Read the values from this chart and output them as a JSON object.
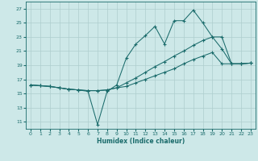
{
  "background_color": "#cde8e8",
  "grid_color": "#aecece",
  "line_color": "#1a6b6b",
  "xlabel": "Humidex (Indice chaleur)",
  "xlim": [
    -0.5,
    23.5
  ],
  "ylim": [
    10,
    28
  ],
  "yticks": [
    11,
    13,
    15,
    17,
    19,
    21,
    23,
    25,
    27
  ],
  "xticks": [
    0,
    1,
    2,
    3,
    4,
    5,
    6,
    7,
    8,
    9,
    10,
    11,
    12,
    13,
    14,
    15,
    16,
    17,
    18,
    19,
    20,
    21,
    22,
    23
  ],
  "line1_x": [
    0,
    1,
    2,
    3,
    4,
    5,
    6,
    7,
    8,
    9,
    10,
    11,
    12,
    13,
    14,
    15,
    16,
    17,
    18,
    19,
    20,
    21,
    22,
    23
  ],
  "line1_y": [
    16.2,
    16.1,
    16.0,
    15.8,
    15.6,
    15.5,
    15.3,
    10.6,
    15.3,
    16.2,
    20.0,
    22.0,
    23.2,
    24.5,
    22.0,
    25.3,
    25.3,
    26.8,
    25.0,
    23.0,
    21.3,
    19.2,
    19.2,
    19.3
  ],
  "line2_x": [
    0,
    1,
    2,
    3,
    4,
    5,
    6,
    7,
    8,
    9,
    10,
    11,
    12,
    13,
    14,
    15,
    16,
    17,
    18,
    19,
    20,
    21,
    22,
    23
  ],
  "line2_y": [
    16.2,
    16.1,
    16.0,
    15.8,
    15.6,
    15.5,
    15.4,
    15.4,
    15.5,
    15.8,
    16.5,
    17.2,
    18.0,
    18.8,
    19.5,
    20.3,
    21.0,
    21.8,
    22.5,
    23.0,
    23.0,
    19.2,
    19.2,
    19.3
  ],
  "line3_x": [
    0,
    1,
    2,
    3,
    4,
    5,
    6,
    7,
    8,
    9,
    10,
    11,
    12,
    13,
    14,
    15,
    16,
    17,
    18,
    19,
    20,
    21,
    22,
    23
  ],
  "line3_y": [
    16.2,
    16.1,
    16.0,
    15.8,
    15.6,
    15.5,
    15.4,
    15.4,
    15.5,
    15.8,
    16.0,
    16.5,
    17.0,
    17.5,
    18.0,
    18.5,
    19.2,
    19.8,
    20.3,
    20.8,
    19.2,
    19.2,
    19.2,
    19.3
  ]
}
